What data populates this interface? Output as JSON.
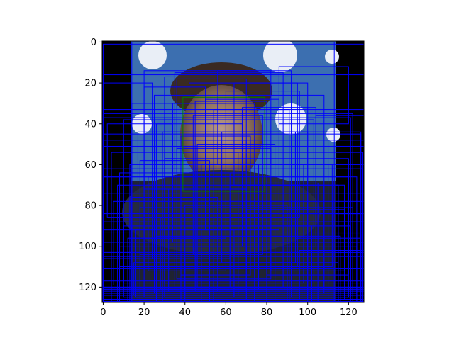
{
  "chart_data": {
    "type": "image-with-boxes",
    "title": "",
    "xlabel": "",
    "ylabel": "",
    "xlim": [
      -0.5,
      127.5
    ],
    "ylim": [
      127.5,
      -0.5
    ],
    "x_ticks": [
      0,
      20,
      40,
      60,
      80,
      100,
      120
    ],
    "y_ticks": [
      0,
      20,
      40,
      60,
      80,
      100,
      120
    ],
    "image_size": [
      128,
      128
    ],
    "image_regions": {
      "left_black_band": [
        0,
        14
      ],
      "right_black_band": [
        114,
        128
      ],
      "blue_backdrop": "#3c6fb0",
      "face_center": [
        57,
        46
      ]
    },
    "box_color": "#0000ff",
    "highlight_box_color": "#008000",
    "highlight_box": {
      "x0": 39,
      "y0": 27,
      "x1": 79,
      "y1": 73
    },
    "boxes": [
      [
        0,
        1,
        128,
        127
      ],
      [
        14,
        0,
        113,
        127
      ],
      [
        0,
        16,
        128,
        126
      ],
      [
        20,
        14,
        92,
        125
      ],
      [
        35,
        15,
        88,
        120
      ],
      [
        30,
        17,
        92,
        118
      ],
      [
        42,
        20,
        95,
        110
      ],
      [
        25,
        26,
        108,
        123
      ],
      [
        0,
        33,
        128,
        124
      ],
      [
        0,
        35,
        122,
        128
      ],
      [
        0,
        37,
        121,
        128
      ],
      [
        10,
        38,
        103,
        118
      ],
      [
        45,
        29,
        80,
        122
      ],
      [
        54,
        33,
        91,
        127
      ],
      [
        17,
        44,
        110,
        126
      ],
      [
        29,
        44,
        100,
        128
      ],
      [
        0,
        45,
        126,
        124
      ],
      [
        0,
        48,
        128,
        121
      ],
      [
        0,
        51,
        128,
        117
      ],
      [
        4,
        54,
        127,
        128
      ],
      [
        13,
        60,
        110,
        127
      ],
      [
        30,
        57,
        120,
        125
      ],
      [
        0,
        62,
        127,
        120
      ],
      [
        0,
        66,
        124,
        123
      ],
      [
        7,
        70,
        115,
        128
      ],
      [
        38,
        69,
        105,
        127
      ],
      [
        0,
        74,
        128,
        126
      ],
      [
        5,
        78,
        128,
        119
      ],
      [
        18,
        81,
        122,
        123
      ],
      [
        0,
        84,
        126,
        127
      ],
      [
        0,
        88,
        128,
        122
      ],
      [
        10,
        90,
        121,
        125
      ],
      [
        0,
        93,
        128,
        120
      ],
      [
        26,
        95,
        116,
        128
      ],
      [
        0,
        98,
        128,
        124
      ],
      [
        8,
        100,
        124,
        127
      ],
      [
        0,
        103,
        128,
        121
      ],
      [
        0,
        105,
        128,
        126
      ],
      [
        15,
        108,
        115,
        124
      ],
      [
        0,
        111,
        128,
        127
      ],
      [
        20,
        48,
        70,
        110
      ],
      [
        36,
        52,
        82,
        116
      ],
      [
        48,
        60,
        98,
        118
      ],
      [
        22,
        66,
        60,
        112
      ],
      [
        62,
        70,
        108,
        120
      ],
      [
        14,
        76,
        56,
        122
      ],
      [
        40,
        80,
        90,
        124
      ],
      [
        70,
        82,
        118,
        126
      ],
      [
        28,
        86,
        76,
        121
      ],
      [
        52,
        90,
        102,
        127
      ],
      [
        16,
        92,
        64,
        125
      ],
      [
        74,
        94,
        126,
        128
      ],
      [
        34,
        30,
        74,
        98
      ],
      [
        44,
        36,
        78,
        104
      ],
      [
        50,
        28,
        86,
        92
      ],
      [
        26,
        40,
        68,
        100
      ],
      [
        58,
        44,
        94,
        108
      ],
      [
        38,
        46,
        72,
        114
      ],
      [
        46,
        50,
        84,
        120
      ],
      [
        30,
        54,
        66,
        118
      ],
      [
        60,
        24,
        96,
        86
      ],
      [
        14,
        30,
        60,
        96
      ],
      [
        68,
        32,
        104,
        100
      ],
      [
        18,
        58,
        52,
        104
      ],
      [
        76,
        60,
        112,
        110
      ],
      [
        24,
        64,
        62,
        106
      ],
      [
        80,
        66,
        120,
        114
      ],
      [
        32,
        72,
        70,
        122
      ],
      [
        66,
        74,
        100,
        124
      ],
      [
        12,
        96,
        48,
        128
      ],
      [
        84,
        98,
        124,
        127
      ],
      [
        42,
        100,
        80,
        128
      ],
      [
        56,
        14,
        82,
        60
      ],
      [
        36,
        18,
        70,
        64
      ],
      [
        64,
        20,
        100,
        70
      ],
      [
        20,
        22,
        50,
        72
      ],
      [
        86,
        12,
        120,
        40
      ],
      [
        0,
        20,
        24,
        66
      ],
      [
        104,
        36,
        128,
        88
      ],
      [
        0,
        92,
        18,
        128
      ],
      [
        110,
        60,
        128,
        118
      ],
      [
        90,
        84,
        128,
        128
      ],
      [
        0,
        106,
        40,
        128
      ],
      [
        96,
        102,
        128,
        126
      ],
      [
        2,
        40,
        34,
        86
      ],
      [
        94,
        44,
        126,
        96
      ],
      [
        8,
        64,
        46,
        110
      ],
      [
        82,
        70,
        118,
        112
      ]
    ]
  }
}
